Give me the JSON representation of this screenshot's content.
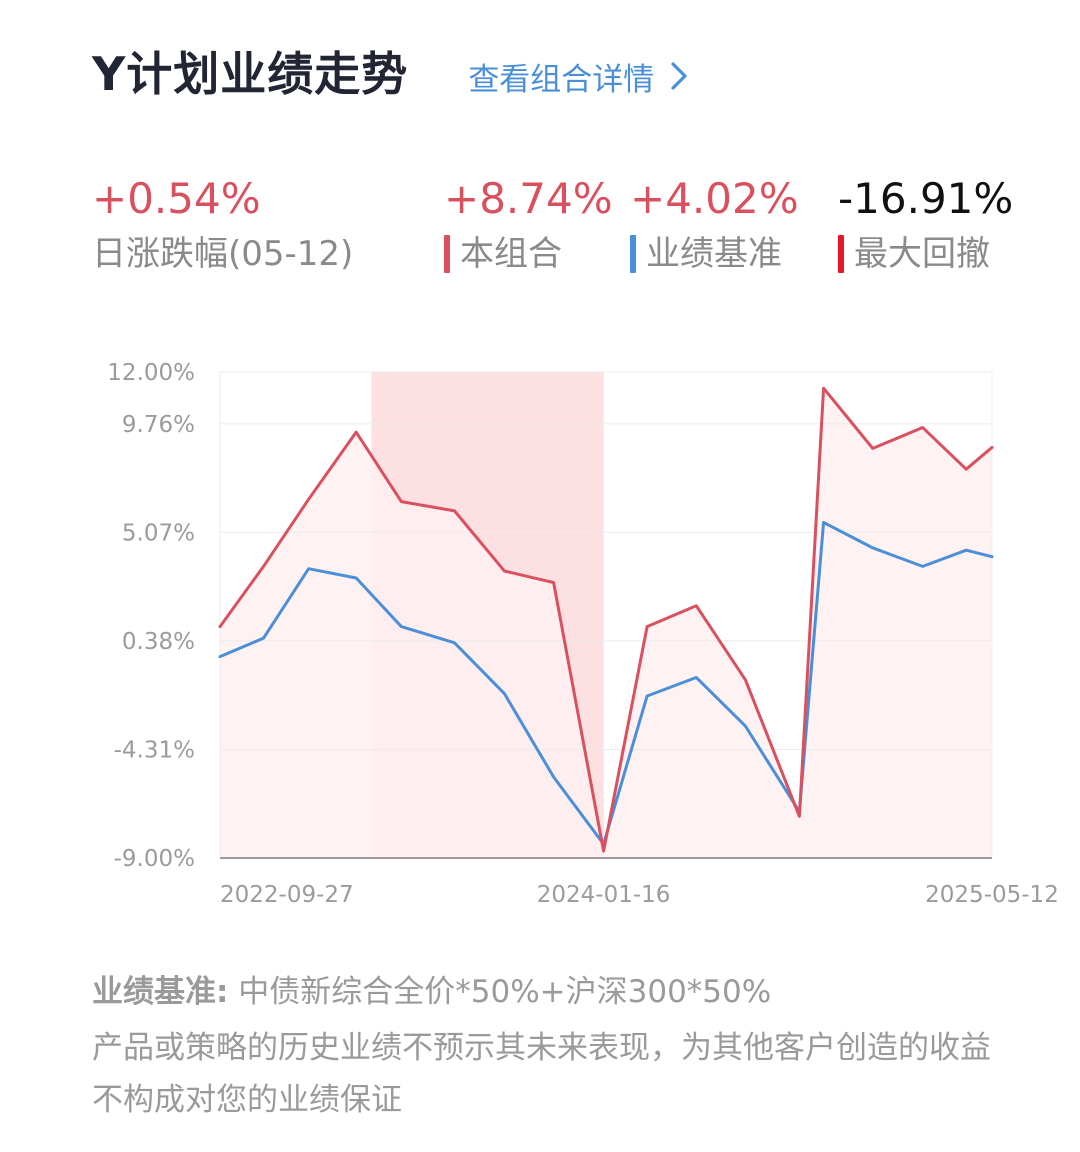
{
  "header": {
    "title": "Y计划业绩走势",
    "detail_link": "查看组合详情"
  },
  "stats": {
    "daily": {
      "value": "+0.54%",
      "label": "日涨跌幅(05-12)",
      "color": "#d9515f"
    },
    "portfolio": {
      "value": "+8.74%",
      "label": "本组合",
      "color": "#d9515f",
      "marker_color": "#d9515f"
    },
    "benchmark": {
      "value": "+4.02%",
      "label": "业绩基准",
      "color": "#d9515f",
      "marker_color": "#4a8fd8"
    },
    "drawdown": {
      "value": "-16.91%",
      "label": "最大回撤",
      "color": "#111111",
      "marker_color": "#e8152b"
    }
  },
  "chart_data": {
    "type": "line",
    "y_ticks": [
      "12.00%",
      "9.76%",
      "5.07%",
      "0.38%",
      "-4.31%",
      "-9.00%"
    ],
    "y_tick_values": [
      12.0,
      9.76,
      5.07,
      0.38,
      -4.31,
      -9.0
    ],
    "ylim": [
      -9.0,
      12.0
    ],
    "x_ticks": [
      "2022-09-27",
      "2024-01-16",
      "2025-05-12"
    ],
    "x": [
      "2022-09-27",
      "2022-11-20",
      "2023-01-15",
      "2023-03-15",
      "2023-05-10",
      "2023-07-15",
      "2023-09-15",
      "2023-11-15",
      "2024-01-16",
      "2024-03-10",
      "2024-05-10",
      "2024-07-10",
      "2024-09-15",
      "2024-10-15",
      "2024-12-15",
      "2025-02-15",
      "2025-04-10",
      "2025-05-12"
    ],
    "series": [
      {
        "name": "本组合",
        "color": "#d9515f",
        "values": [
          1.0,
          3.6,
          6.5,
          9.4,
          6.4,
          6.0,
          3.4,
          2.9,
          -8.7,
          1.0,
          1.9,
          -1.3,
          -7.2,
          11.3,
          8.7,
          9.6,
          7.8,
          8.74
        ]
      },
      {
        "name": "业绩基准",
        "color": "#4a8fd8",
        "values": [
          -0.3,
          0.5,
          3.5,
          3.1,
          1.0,
          0.3,
          -1.9,
          -5.5,
          -8.4,
          -2.0,
          -1.2,
          -3.3,
          -7.0,
          5.5,
          4.4,
          3.6,
          4.3,
          4.02
        ]
      }
    ],
    "shaded_periods": [
      {
        "from": "2023-04-03",
        "to": "2024-01-16",
        "color": "#fde0e2"
      }
    ],
    "fill_color": "#fff0f1",
    "grid": true
  },
  "footer": {
    "benchmark_label": "业绩基准:",
    "benchmark_text": "中债新综合全价*50%+沪深300*50%",
    "disclaimer": "产品或策略的历史业绩不预示其未来表现，为其他客户创造的收益不构成对您的业绩保证"
  }
}
